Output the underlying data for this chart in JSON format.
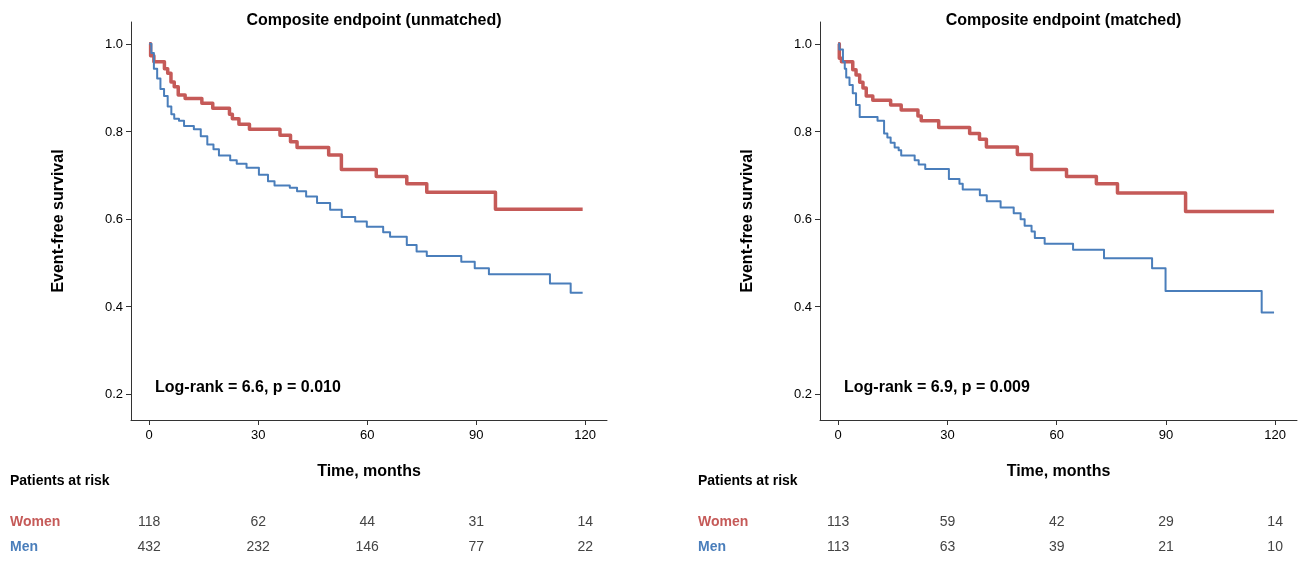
{
  "chart_data": [
    {
      "type": "step",
      "title": "Composite endpoint (unmatched)",
      "xlabel": "Time, months",
      "ylabel": "Event-free survival",
      "xlim": [
        -5,
        126
      ],
      "xticks": [
        0,
        30,
        60,
        90,
        120
      ],
      "ylim": [
        0.14,
        1.05
      ],
      "yticks": [
        {
          "value": 0.2,
          "label": "0.2"
        },
        {
          "value": 0.4,
          "label": "0.4"
        },
        {
          "value": 0.6,
          "label": "0.6"
        },
        {
          "value": 0.8,
          "label": "0.8"
        },
        {
          "value": 1,
          "label": "1.0"
        }
      ],
      "grid": false,
      "marker": "none",
      "line_style": "solid",
      "series": [
        {
          "name": "Women",
          "color": "#c55a58",
          "x": [
            0,
            0.4,
            1.3,
            4.2,
            5.1,
            6.0,
            6.9,
            8.0,
            9.9,
            14.5,
            17.5,
            22.1,
            22.9,
            24.7,
            27.6,
            36.0,
            38.9,
            40.7,
            49.4,
            52.9,
            62.5,
            70.9,
            76.4,
            95.3,
            119.3
          ],
          "values": [
            1.0,
            0.973,
            0.959,
            0.943,
            0.933,
            0.913,
            0.902,
            0.883,
            0.875,
            0.864,
            0.853,
            0.839,
            0.829,
            0.816,
            0.805,
            0.791,
            0.776,
            0.763,
            0.746,
            0.713,
            0.697,
            0.68,
            0.661,
            0.622,
            0.622
          ]
        },
        {
          "name": "Men",
          "color": "#4a7ebb",
          "x": [
            0,
            0.6,
            1.3,
            2.2,
            3.1,
            4.1,
            5.1,
            6.1,
            6.9,
            8.2,
            9.6,
            12.3,
            14.2,
            16.0,
            17.7,
            19.2,
            22.3,
            24.1,
            26.8,
            30.2,
            32.7,
            34.5,
            38.7,
            40.7,
            43.2,
            46.2,
            49.8,
            53.0,
            56.7,
            59.9,
            64.4,
            66.3,
            70.9,
            73.6,
            76.4,
            85.9,
            89.6,
            93.5,
            110.3,
            116.0,
            119.3
          ],
          "values": [
            1.0,
            0.979,
            0.943,
            0.921,
            0.897,
            0.881,
            0.857,
            0.839,
            0.829,
            0.824,
            0.812,
            0.805,
            0.789,
            0.77,
            0.759,
            0.745,
            0.734,
            0.726,
            0.717,
            0.701,
            0.686,
            0.676,
            0.671,
            0.663,
            0.651,
            0.636,
            0.621,
            0.604,
            0.594,
            0.582,
            0.569,
            0.559,
            0.54,
            0.525,
            0.515,
            0.502,
            0.487,
            0.473,
            0.452,
            0.431,
            0.431
          ]
        }
      ],
      "annotations": [
        "Log-rank = 6.6, p = 0.010",
        "Patients at risk",
        "118",
        "62",
        "44",
        "31",
        "14",
        "432",
        "232",
        "146",
        "77",
        "22"
      ]
    },
    {
      "type": "step",
      "title": "Composite endpoint (matched)",
      "xlabel": "Time, months",
      "ylabel": "Event-free survival",
      "xlim": [
        -5,
        126
      ],
      "xticks": [
        0,
        30,
        60,
        90,
        120
      ],
      "ylim": [
        0.14,
        1.05
      ],
      "yticks": [
        {
          "value": 0.2,
          "label": "0.2"
        },
        {
          "value": 0.4,
          "label": "0.4"
        },
        {
          "value": 0.6,
          "label": "0.6"
        },
        {
          "value": 0.8,
          "label": "0.8"
        },
        {
          "value": 1,
          "label": "1.0"
        }
      ],
      "grid": false,
      "marker": "none",
      "line_style": "solid",
      "series": [
        {
          "name": "Women",
          "color": "#c55a58",
          "x": [
            0,
            0.3,
            0.9,
            4.0,
            4.9,
            5.9,
            6.8,
            7.7,
            9.5,
            14.4,
            17.3,
            21.9,
            22.8,
            27.6,
            36.1,
            38.8,
            40.7,
            49.2,
            53.1,
            62.7,
            70.9,
            76.7,
            95.4,
            119.7
          ],
          "values": [
            1.0,
            0.967,
            0.959,
            0.941,
            0.929,
            0.912,
            0.899,
            0.881,
            0.871,
            0.86,
            0.849,
            0.835,
            0.824,
            0.809,
            0.795,
            0.782,
            0.764,
            0.747,
            0.713,
            0.697,
            0.68,
            0.659,
            0.617,
            0.617
          ]
        },
        {
          "name": "Men",
          "color": "#4a7ebb",
          "x": [
            0,
            0.3,
            1.3,
            1.8,
            2.2,
            3.1,
            4.0,
            4.9,
            5.9,
            10.8,
            12.6,
            13.5,
            14.4,
            15.5,
            16.6,
            17.3,
            21.0,
            22.1,
            23.9,
            30.4,
            33.3,
            34.2,
            38.9,
            40.8,
            44.6,
            48.2,
            50.1,
            51.2,
            53.1,
            54.0,
            56.7,
            64.5,
            73.0,
            86.2,
            89.9,
            116.3,
            119.7
          ],
          "values": [
            1.0,
            0.987,
            0.959,
            0.943,
            0.923,
            0.906,
            0.887,
            0.86,
            0.833,
            0.824,
            0.795,
            0.786,
            0.774,
            0.763,
            0.757,
            0.745,
            0.734,
            0.724,
            0.714,
            0.691,
            0.68,
            0.667,
            0.654,
            0.64,
            0.626,
            0.613,
            0.599,
            0.584,
            0.571,
            0.556,
            0.543,
            0.529,
            0.51,
            0.487,
            0.435,
            0.386,
            0.386
          ]
        }
      ],
      "annotations": [
        "Log-rank = 6.9, p = 0.009",
        "Patients at risk",
        "113",
        "59",
        "42",
        "29",
        "14",
        "113",
        "63",
        "39",
        "21",
        "10"
      ]
    }
  ]
}
